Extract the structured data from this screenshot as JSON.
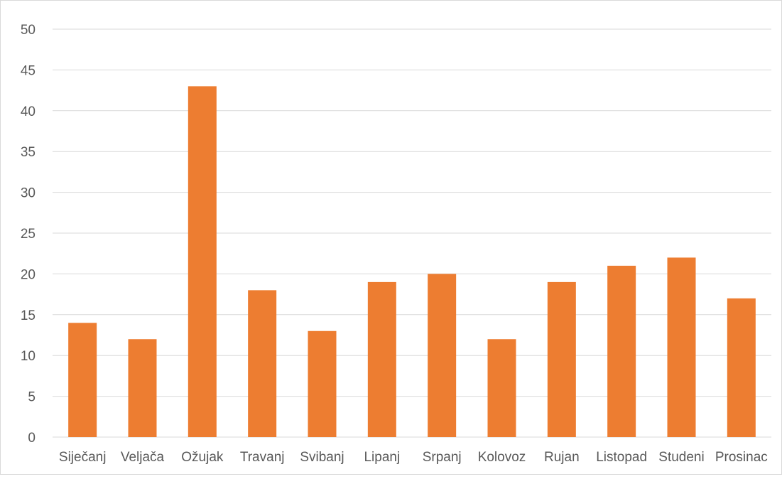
{
  "chart_data": {
    "type": "bar",
    "categories": [
      "Siječanj",
      "Veljača",
      "Ožujak",
      "Travanj",
      "Svibanj",
      "Lipanj",
      "Srpanj",
      "Kolovoz",
      "Rujan",
      "Listopad",
      "Studeni",
      "Prosinac"
    ],
    "values": [
      14,
      12,
      43,
      18,
      13,
      19,
      20,
      12,
      19,
      21,
      22,
      17
    ],
    "title": "",
    "xlabel": "",
    "ylabel": "",
    "ylim": [
      0,
      50
    ],
    "yticks": [
      "0",
      "5",
      "10",
      "15",
      "20",
      "25",
      "30",
      "35",
      "40",
      "45",
      "50"
    ],
    "grid": true,
    "legend": "none",
    "bar_color": "#ED7D31",
    "grid_color": "#d9d9d9",
    "text_color": "#595959"
  }
}
